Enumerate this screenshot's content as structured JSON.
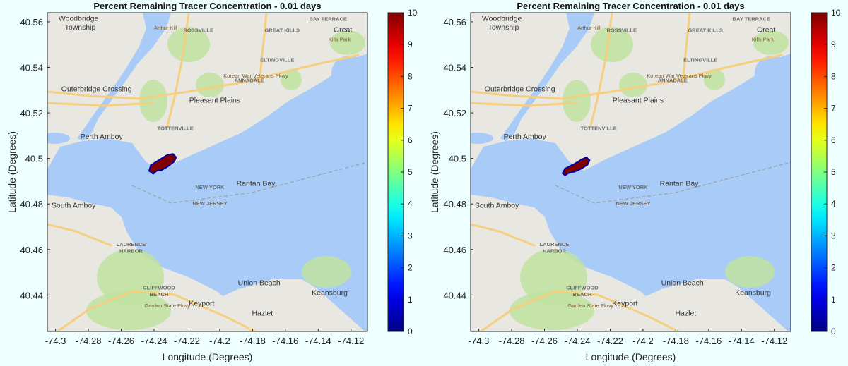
{
  "background": "#eeffff",
  "chart_data": [
    {
      "type": "heatmap",
      "title": "Percent Remaining Tracer Concentration - 0.01 days",
      "xlabel": "Longitude (Degrees)",
      "ylabel": "Latitude (Degrees)",
      "xlim": [
        -74.305,
        -74.11
      ],
      "ylim": [
        40.424,
        40.564
      ],
      "xticks": [
        -74.3,
        -74.28,
        -74.26,
        -74.24,
        -74.22,
        -74.2,
        -74.18,
        -74.16,
        -74.14,
        -74.12
      ],
      "xtick_labels": [
        "-74.3",
        "-74.28",
        "-74.26",
        "-74.24",
        "-74.22",
        "-74.2",
        "-74.18",
        "-74.16",
        "-74.14",
        "-74.12"
      ],
      "yticks": [
        40.44,
        40.46,
        40.48,
        40.5,
        40.52,
        40.54,
        40.56
      ],
      "ytick_labels": [
        "40.44",
        "40.46",
        "40.48",
        "40.5",
        "40.52",
        "40.54",
        "40.56"
      ],
      "grid": false,
      "colorbar": {
        "colormap": "jet",
        "min": 0,
        "max": 10,
        "ticks": [
          0,
          1,
          2,
          3,
          4,
          5,
          6,
          7,
          8,
          9,
          10
        ],
        "tick_labels": [
          "0",
          "1",
          "2",
          "3",
          "4",
          "5",
          "6",
          "7",
          "8",
          "9",
          "10"
        ]
      },
      "plume": {
        "value": 10,
        "color": "#800000",
        "edge_color": "#0000aa",
        "outline": [
          [
            -74.243,
            40.4945
          ],
          [
            -74.242,
            40.497
          ],
          [
            -74.2365,
            40.4995
          ],
          [
            -74.232,
            40.5015
          ],
          [
            -74.2285,
            40.502
          ],
          [
            -74.2265,
            40.5005
          ],
          [
            -74.2278,
            40.4985
          ],
          [
            -74.2315,
            40.4965
          ],
          [
            -74.235,
            40.495
          ],
          [
            -74.2385,
            40.4945
          ],
          [
            -74.2405,
            40.4932
          ]
        ]
      },
      "basemap_labels": [
        {
          "text": "Woodbridge",
          "lon": -74.286,
          "lat": 40.5605
        },
        {
          "text": "Township",
          "lon": -74.285,
          "lat": 40.5565
        },
        {
          "text": "Outerbridge Crossing",
          "lon": -74.275,
          "lat": 40.5295
        },
        {
          "text": "Pleasant Plains",
          "lon": -74.203,
          "lat": 40.5245
        },
        {
          "text": "Perth Amboy",
          "lon": -74.272,
          "lat": 40.5085
        },
        {
          "text": "South Amboy",
          "lon": -74.289,
          "lat": 40.4783
        },
        {
          "text": "Union Beach",
          "lon": -74.176,
          "lat": 40.4443
        },
        {
          "text": "Keansburg",
          "lon": -74.133,
          "lat": 40.44
        },
        {
          "text": "Keyport",
          "lon": -74.211,
          "lat": 40.4353
        },
        {
          "text": "Hazlet",
          "lon": -74.174,
          "lat": 40.431
        },
        {
          "text": "NEW YORK",
          "lon": -74.206,
          "lat": 40.4865
        },
        {
          "text": "NEW JERSEY",
          "lon": -74.206,
          "lat": 40.4795
        },
        {
          "text": "Raritan Bay",
          "lon": -74.178,
          "lat": 40.488
        },
        {
          "text": "ROSSVILLE",
          "lon": -74.213,
          "lat": 40.5555
        },
        {
          "text": "GREAT KILLS",
          "lon": -74.162,
          "lat": 40.5555
        },
        {
          "text": "BAY TERRACE",
          "lon": -74.134,
          "lat": 40.5605
        },
        {
          "text": "Great",
          "lon": -74.125,
          "lat": 40.5555
        },
        {
          "text": "Kills Park",
          "lon": -74.127,
          "lat": 40.5515
        },
        {
          "text": "ELTINGVILLE",
          "lon": -74.165,
          "lat": 40.5425
        },
        {
          "text": "ANNADALE",
          "lon": -74.182,
          "lat": 40.5335
        },
        {
          "text": "TOTTENVILLE",
          "lon": -74.227,
          "lat": 40.5125
        },
        {
          "text": "LAURENCE",
          "lon": -74.254,
          "lat": 40.4615
        },
        {
          "text": "HARBOR",
          "lon": -74.254,
          "lat": 40.4585
        },
        {
          "text": "CLIFFWOOD",
          "lon": -74.237,
          "lat": 40.4425
        },
        {
          "text": "BEACH",
          "lon": -74.237,
          "lat": 40.4395
        },
        {
          "text": "Korean War Veterans Pkwy",
          "lon": -74.178,
          "lat": 40.5355
        },
        {
          "text": "Garden State Pkwy",
          "lon": -74.232,
          "lat": 40.4345
        },
        {
          "text": "Arthur Kill",
          "lon": -74.233,
          "lat": 40.5565
        }
      ]
    },
    {
      "type": "heatmap",
      "title": "Percent Remaining Tracer Concentration - 0.01 days",
      "xlabel": "Longitude (Degrees)",
      "ylabel": "Latitude (Degrees)",
      "xlim": [
        -74.305,
        -74.11
      ],
      "ylim": [
        40.424,
        40.564
      ],
      "xticks": [
        -74.3,
        -74.28,
        -74.26,
        -74.24,
        -74.22,
        -74.2,
        -74.18,
        -74.16,
        -74.14,
        -74.12
      ],
      "xtick_labels": [
        "-74.3",
        "-74.28",
        "-74.26",
        "-74.24",
        "-74.22",
        "-74.2",
        "-74.18",
        "-74.16",
        "-74.14",
        "-74.12"
      ],
      "yticks": [
        40.44,
        40.46,
        40.48,
        40.5,
        40.52,
        40.54,
        40.56
      ],
      "ytick_labels": [
        "40.44",
        "40.46",
        "40.48",
        "40.5",
        "40.52",
        "40.54",
        "40.56"
      ],
      "grid": false,
      "colorbar": {
        "colormap": "jet",
        "min": 0,
        "max": 10,
        "ticks": [
          0,
          1,
          2,
          3,
          4,
          5,
          6,
          7,
          8,
          9,
          10
        ],
        "tick_labels": [
          "0",
          "1",
          "2",
          "3",
          "4",
          "5",
          "6",
          "7",
          "8",
          "9",
          "10"
        ]
      },
      "plume": {
        "value": 10,
        "color": "#800000",
        "edge_color": "#0000aa",
        "outline": [
          [
            -74.249,
            40.4935
          ],
          [
            -74.2475,
            40.4955
          ],
          [
            -74.242,
            40.4975
          ],
          [
            -74.2375,
            40.4995
          ],
          [
            -74.2345,
            40.5005
          ],
          [
            -74.2325,
            40.4992
          ],
          [
            -74.2338,
            40.4972
          ],
          [
            -74.2375,
            40.4955
          ],
          [
            -74.2415,
            40.4942
          ],
          [
            -74.2455,
            40.4935
          ],
          [
            -74.2475,
            40.4925
          ]
        ]
      },
      "basemap_labels": [
        {
          "text": "Woodbridge",
          "lon": -74.286,
          "lat": 40.5605
        },
        {
          "text": "Township",
          "lon": -74.285,
          "lat": 40.5565
        },
        {
          "text": "Outerbridge Crossing",
          "lon": -74.275,
          "lat": 40.5295
        },
        {
          "text": "Pleasant Plains",
          "lon": -74.203,
          "lat": 40.5245
        },
        {
          "text": "Perth Amboy",
          "lon": -74.272,
          "lat": 40.5085
        },
        {
          "text": "South Amboy",
          "lon": -74.289,
          "lat": 40.4783
        },
        {
          "text": "Union Beach",
          "lon": -74.176,
          "lat": 40.4443
        },
        {
          "text": "Keansburg",
          "lon": -74.133,
          "lat": 40.44
        },
        {
          "text": "Keyport",
          "lon": -74.211,
          "lat": 40.4353
        },
        {
          "text": "Hazlet",
          "lon": -74.174,
          "lat": 40.431
        },
        {
          "text": "NEW YORK",
          "lon": -74.206,
          "lat": 40.4865
        },
        {
          "text": "NEW JERSEY",
          "lon": -74.206,
          "lat": 40.4795
        },
        {
          "text": "Raritan Bay",
          "lon": -74.178,
          "lat": 40.488
        },
        {
          "text": "ROSSVILLE",
          "lon": -74.213,
          "lat": 40.5555
        },
        {
          "text": "GREAT KILLS",
          "lon": -74.162,
          "lat": 40.5555
        },
        {
          "text": "BAY TERRACE",
          "lon": -74.134,
          "lat": 40.5605
        },
        {
          "text": "Great",
          "lon": -74.125,
          "lat": 40.5555
        },
        {
          "text": "Kills Park",
          "lon": -74.127,
          "lat": 40.5515
        },
        {
          "text": "ELTINGVILLE",
          "lon": -74.165,
          "lat": 40.5425
        },
        {
          "text": "ANNADALE",
          "lon": -74.182,
          "lat": 40.5335
        },
        {
          "text": "TOTTENVILLE",
          "lon": -74.227,
          "lat": 40.5125
        },
        {
          "text": "LAURENCE",
          "lon": -74.254,
          "lat": 40.4615
        },
        {
          "text": "HARBOR",
          "lon": -74.254,
          "lat": 40.4585
        },
        {
          "text": "CLIFFWOOD",
          "lon": -74.237,
          "lat": 40.4425
        },
        {
          "text": "BEACH",
          "lon": -74.237,
          "lat": 40.4395
        },
        {
          "text": "Korean War Veterans Pkwy",
          "lon": -74.178,
          "lat": 40.5355
        },
        {
          "text": "Garden State Pkwy",
          "lon": -74.232,
          "lat": 40.4345
        },
        {
          "text": "Arthur Kill",
          "lon": -74.233,
          "lat": 40.5565
        }
      ]
    }
  ]
}
